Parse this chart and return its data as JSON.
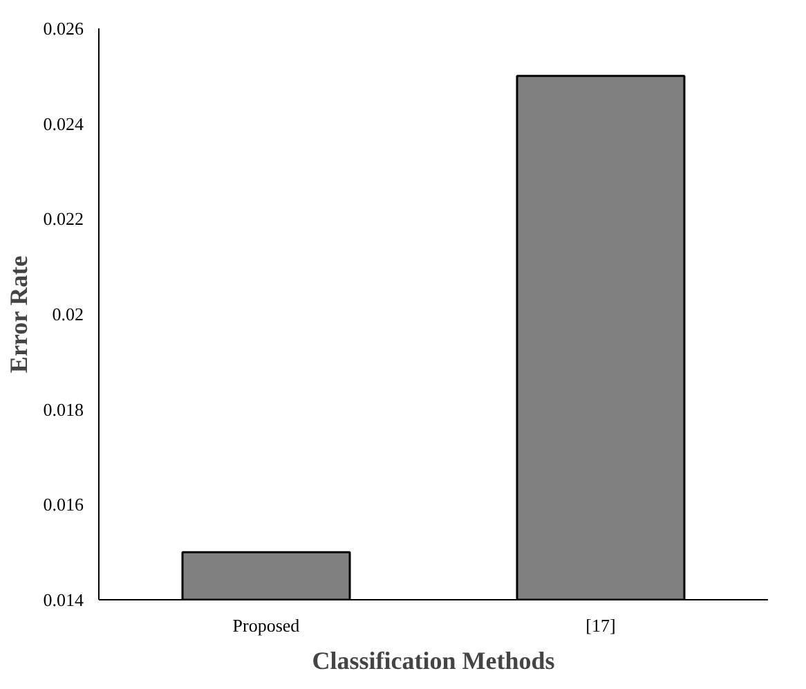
{
  "chart_data": {
    "type": "bar",
    "xlabel": "Classification Methods",
    "ylabel": "Error Rate",
    "categories": [
      "Proposed",
      "[17]"
    ],
    "values": [
      0.015,
      0.025
    ],
    "color": "#808080",
    "ylim": [
      0.014,
      0.026
    ],
    "yticks": [
      0.014,
      0.016,
      0.018,
      {
        "value": 0.02,
        "label": "0.02"
      },
      0.022,
      0.024,
      0.026
    ],
    "grid": false
  }
}
